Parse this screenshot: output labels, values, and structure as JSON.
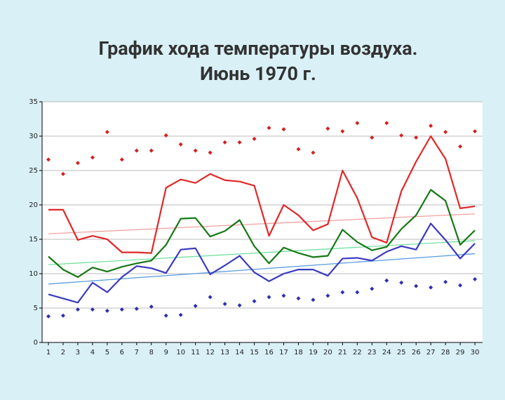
{
  "chart_data": {
    "type": "line",
    "title": [
      "График хода температуры воздуха.",
      "Июнь 1970 г."
    ],
    "x": [
      1,
      2,
      3,
      4,
      5,
      6,
      7,
      8,
      9,
      10,
      11,
      12,
      13,
      14,
      15,
      16,
      17,
      18,
      19,
      20,
      21,
      22,
      23,
      24,
      25,
      26,
      27,
      28,
      29,
      30
    ],
    "xlim": [
      0.57,
      30.52
    ],
    "xticks": [
      1,
      2,
      3,
      4,
      5,
      6,
      7,
      8,
      9,
      10,
      11,
      12,
      13,
      14,
      15,
      16,
      17,
      18,
      19,
      20,
      21,
      22,
      23,
      24,
      25,
      26,
      27,
      28,
      29,
      30
    ],
    "ylim": [
      0,
      35
    ],
    "yticks": [
      0,
      5,
      10,
      15,
      20,
      25,
      30,
      35
    ],
    "grid": true,
    "series": [
      {
        "color": "#e02828",
        "style": "line",
        "values": [
          19.3,
          19.3,
          14.9,
          15.5,
          15.0,
          13.1,
          13.1,
          13.0,
          22.5,
          23.7,
          23.2,
          24.5,
          23.6,
          23.4,
          22.8,
          15.5,
          20.0,
          18.5,
          16.3,
          17.2,
          25.0,
          21.0,
          15.3,
          14.5,
          22.0,
          26.3,
          30.0,
          26.7,
          19.5,
          19.8
        ]
      },
      {
        "color": "#167816",
        "style": "line",
        "values": [
          12.5,
          10.6,
          9.5,
          10.9,
          10.3,
          11.0,
          11.5,
          11.9,
          14.2,
          18.0,
          18.1,
          15.4,
          16.2,
          17.8,
          14.0,
          11.5,
          13.8,
          13.0,
          12.4,
          12.6,
          16.4,
          14.6,
          13.4,
          13.9,
          16.5,
          18.5,
          22.2,
          20.6,
          14.2,
          16.3
        ]
      },
      {
        "color": "#3a3abf",
        "style": "line",
        "values": [
          7.0,
          6.4,
          5.8,
          8.7,
          7.3,
          9.5,
          11.1,
          10.8,
          10.1,
          13.5,
          13.7,
          9.9,
          11.2,
          12.6,
          10.2,
          8.9,
          10.0,
          10.6,
          10.6,
          9.7,
          12.2,
          12.3,
          11.9,
          13.2,
          14.0,
          13.5,
          17.3,
          14.9,
          12.2,
          14.4
        ]
      },
      {
        "color": "#d42020",
        "style": "points",
        "values": [
          26.6,
          24.5,
          26.1,
          26.9,
          30.6,
          26.6,
          27.9,
          27.9,
          30.1,
          28.8,
          27.9,
          27.6,
          29.1,
          29.1,
          29.6,
          31.2,
          31.0,
          28.1,
          27.6,
          31.1,
          30.7,
          31.9,
          29.8,
          31.9,
          30.1,
          29.8,
          31.5,
          30.6,
          28.5,
          30.7
        ]
      },
      {
        "color": "#3030b0",
        "style": "points",
        "values": [
          3.8,
          3.9,
          4.8,
          4.8,
          4.6,
          4.8,
          4.9,
          5.2,
          3.9,
          4.0,
          5.3,
          6.6,
          5.6,
          5.4,
          6.0,
          6.6,
          6.8,
          6.4,
          6.2,
          6.8,
          7.3,
          7.3,
          7.8,
          9.0,
          8.7,
          8.2,
          8.0,
          8.8,
          8.3,
          9.2
        ]
      },
      {
        "color": "#f0a0a0",
        "style": "trend",
        "x": [
          1,
          30
        ],
        "values": [
          15.8,
          18.7
        ]
      },
      {
        "color": "#70e0a0",
        "style": "trend",
        "x": [
          1,
          30
        ],
        "values": [
          11.3,
          14.8
        ]
      },
      {
        "color": "#5a9ee0",
        "style": "trend",
        "x": [
          1,
          30
        ],
        "values": [
          8.5,
          12.9
        ]
      }
    ]
  }
}
